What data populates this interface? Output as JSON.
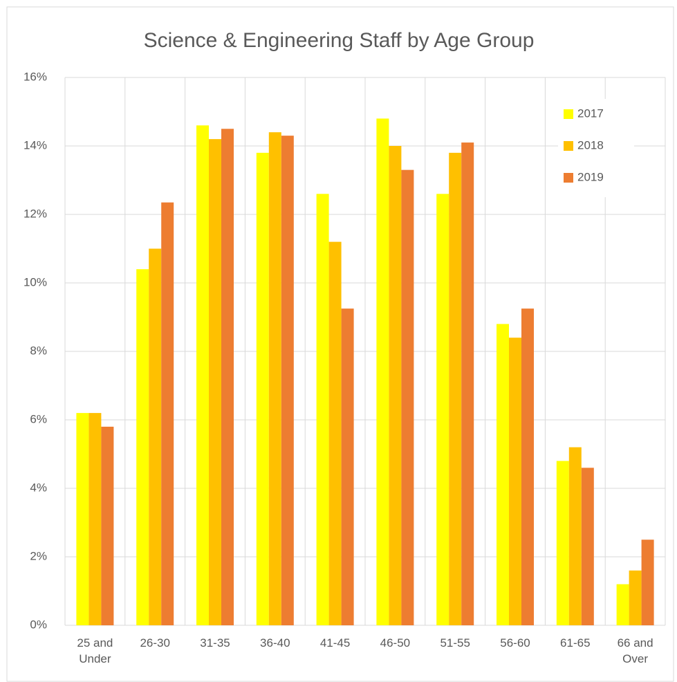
{
  "chart_data": {
    "type": "bar",
    "title": "Science & Engineering Staff by Age Group",
    "categories": [
      "25 and Under",
      "26-30",
      "31-35",
      "36-40",
      "41-45",
      "46-50",
      "51-55",
      "56-60",
      "61-65",
      "66 and Over"
    ],
    "series": [
      {
        "name": "2017",
        "color": "#ffff00",
        "values": [
          6.2,
          10.4,
          14.6,
          13.8,
          12.6,
          14.8,
          12.6,
          8.8,
          4.8,
          1.2
        ]
      },
      {
        "name": "2018",
        "color": "#ffc000",
        "values": [
          6.2,
          11.0,
          14.2,
          14.4,
          11.2,
          14.0,
          13.8,
          8.4,
          5.2,
          1.6
        ]
      },
      {
        "name": "2019",
        "color": "#ed7d31",
        "values": [
          5.8,
          12.35,
          14.5,
          14.3,
          9.25,
          13.3,
          14.1,
          9.25,
          4.6,
          2.5
        ]
      }
    ],
    "ylim": [
      0,
      16
    ],
    "yticks": [
      {
        "value": 0,
        "label": "0%"
      },
      {
        "value": 2,
        "label": "2%"
      },
      {
        "value": 4,
        "label": "4%"
      },
      {
        "value": 6,
        "label": "6%"
      },
      {
        "value": 8,
        "label": "8%"
      },
      {
        "value": 10,
        "label": "10%"
      },
      {
        "value": 12,
        "label": "12%"
      },
      {
        "value": 14,
        "label": "14%"
      },
      {
        "value": 16,
        "label": "16%"
      }
    ],
    "grid": true,
    "legend": "upper right"
  }
}
